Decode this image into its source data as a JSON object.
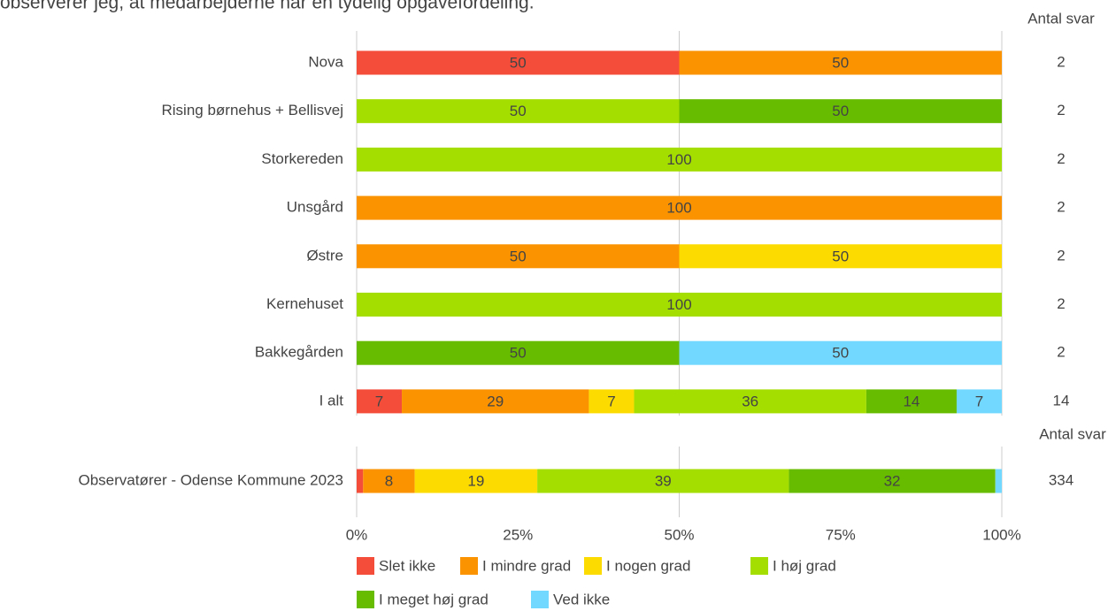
{
  "chart_data": {
    "type": "stacked-bar-horizontal",
    "title": "observerer jeg, at medarbejderne har en tydelig opgavefordeling.",
    "categories": [
      "Nova",
      "Rising børnehus + Bellisvej",
      "Storkereden",
      "Unsgård",
      "Østre",
      "Kernehuset",
      "Bakkegården",
      "I alt"
    ],
    "series": [
      {
        "name": "Slet ikke",
        "color": "#f44e3b",
        "label_color": "#ffffff",
        "values": [
          50,
          0,
          0,
          0,
          0,
          0,
          0,
          7
        ]
      },
      {
        "name": "I mindre grad",
        "color": "#fb9300",
        "label_color": "#333333",
        "values": [
          50,
          0,
          0,
          100,
          50,
          0,
          0,
          29
        ]
      },
      {
        "name": "I nogen grad",
        "color": "#fcdc00",
        "label_color": "#333333",
        "values": [
          0,
          0,
          0,
          0,
          50,
          0,
          0,
          7
        ]
      },
      {
        "name": "I høj grad",
        "color": "#a4dd00",
        "label_color": "#333333",
        "values": [
          0,
          50,
          100,
          0,
          0,
          100,
          0,
          36
        ]
      },
      {
        "name": "I meget høj grad",
        "color": "#68bc00",
        "label_color": "#ffffff",
        "values": [
          0,
          50,
          0,
          0,
          0,
          0,
          50,
          14
        ]
      },
      {
        "name": "Ved ikke",
        "color": "#73d8ff",
        "label_color": "#333333",
        "values": [
          0,
          0,
          0,
          0,
          0,
          0,
          50,
          7
        ]
      }
    ],
    "counts_label": "Antal svar",
    "counts": [
      2,
      2,
      2,
      2,
      2,
      2,
      2,
      14
    ],
    "benchmark": {
      "category": "Observatører - Odense Kommune 2023",
      "values": [
        1,
        8,
        19,
        39,
        32,
        1
      ],
      "count": 334
    },
    "xlim": [
      0,
      100
    ],
    "xticks": [
      {
        "value": 0,
        "label": "0%"
      },
      {
        "value": 25,
        "label": "25%"
      },
      {
        "value": 50,
        "label": "50%"
      },
      {
        "value": 75,
        "label": "75%"
      },
      {
        "value": 100,
        "label": "100%"
      }
    ],
    "grid": true
  }
}
